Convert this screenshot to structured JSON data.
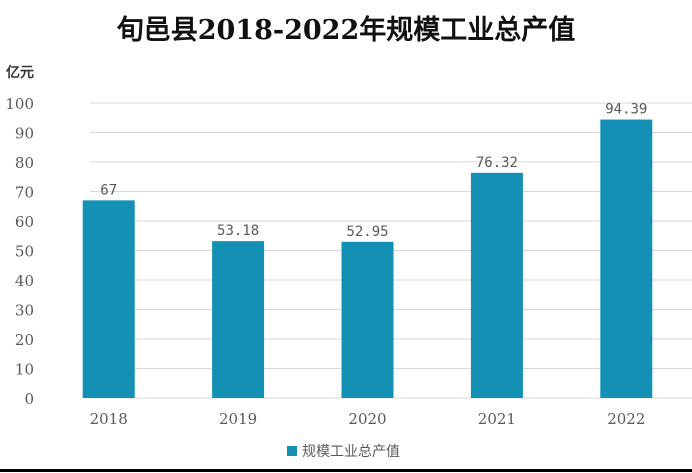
{
  "chart_data": {
    "type": "bar",
    "title": "旬邑县2018-2022年规模工业总产值",
    "ylabel": "亿元",
    "xlabel": "",
    "categories": [
      "2018",
      "2019",
      "2020",
      "2021",
      "2022"
    ],
    "series": [
      {
        "name": "规模工业总产值",
        "values": [
          67,
          53.18,
          52.95,
          76.32,
          94.39
        ],
        "labels": [
          "67",
          "53.18",
          "52.95",
          "76.32",
          "94.39"
        ]
      }
    ],
    "ylim": [
      0,
      100
    ],
    "yticks": [
      0,
      10,
      20,
      30,
      40,
      50,
      60,
      70,
      80,
      90,
      100
    ],
    "grid": true,
    "legend": "bottom-center",
    "colors": {
      "bar": "#1590b5",
      "grid": "#d9d9d9",
      "text": "#595959"
    }
  }
}
